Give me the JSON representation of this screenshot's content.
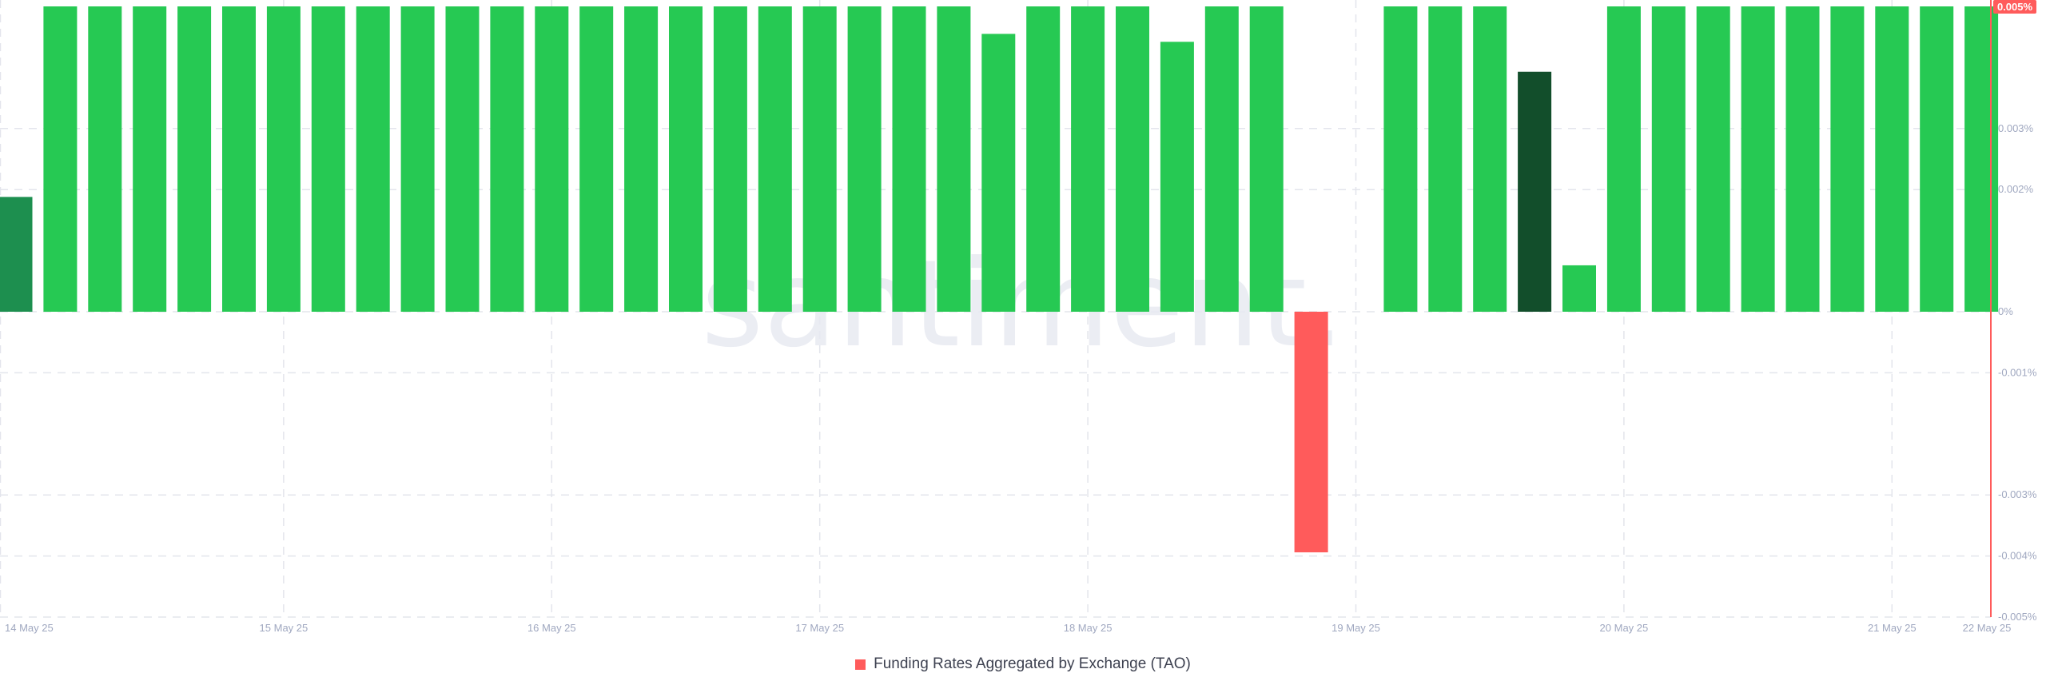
{
  "colors": {
    "positive": "#26c953",
    "negative": "#ff5b5b",
    "axis_accent": "#ff5b5b",
    "highlight_dark": "#124e2b",
    "highlight_mid": "#1d8f4f",
    "badge_bg": "#ff5b5b"
  },
  "watermark": "santiment.",
  "legend": {
    "label": "Funding Rates Aggregated by Exchange (TAO)",
    "icon": "square-icon"
  },
  "chart_data": {
    "type": "bar",
    "title": "",
    "xlabel": "",
    "ylabel": "",
    "ylim": [
      -0.005,
      0.005
    ],
    "y_ticks": [
      {
        "value": 0.003,
        "label": "0.003%"
      },
      {
        "value": 0.002,
        "label": "0.002%"
      },
      {
        "value": 0,
        "label": "0%"
      },
      {
        "value": -0.001,
        "label": "-0.001%"
      },
      {
        "value": -0.003,
        "label": "-0.003%"
      },
      {
        "value": -0.004,
        "label": "-0.004%"
      },
      {
        "value": -0.005,
        "label": "-0.005%"
      }
    ],
    "current_value_badge": "0.005%",
    "x_ticks": [
      {
        "bar_index": 0,
        "label": "14 May 25"
      },
      {
        "bar_index": 6,
        "label": "15 May 25"
      },
      {
        "bar_index": 12,
        "label": "16 May 25"
      },
      {
        "bar_index": 18,
        "label": "17 May 25"
      },
      {
        "bar_index": 24,
        "label": "18 May 25"
      },
      {
        "bar_index": 30,
        "label": "19 May 25"
      },
      {
        "bar_index": 36,
        "label": "20 May 25"
      },
      {
        "bar_index": 42,
        "label": "21 May 25"
      },
      {
        "bar_index": 44.5,
        "label": "22 May 25"
      }
    ],
    "series": [
      {
        "name": "Funding Rates Aggregated by Exchange (TAO)",
        "values": [
          0.00188,
          0.005,
          0.005,
          0.005,
          0.005,
          0.005,
          0.005,
          0.005,
          0.005,
          0.005,
          0.005,
          0.005,
          0.005,
          0.005,
          0.005,
          0.005,
          0.005,
          0.005,
          0.005,
          0.005,
          0.005,
          0.005,
          0.00455,
          0.005,
          0.005,
          0.005,
          0.00442,
          0.005,
          0.005,
          -0.00394,
          null,
          0.005,
          0.005,
          0.005,
          0.00393,
          0.00076,
          0.005,
          0.005,
          0.005,
          0.005,
          0.005,
          0.005,
          0.005,
          0.005,
          0.005
        ],
        "highlighted": {
          "0": "highlight_mid",
          "34": "highlight_dark"
        }
      }
    ]
  }
}
